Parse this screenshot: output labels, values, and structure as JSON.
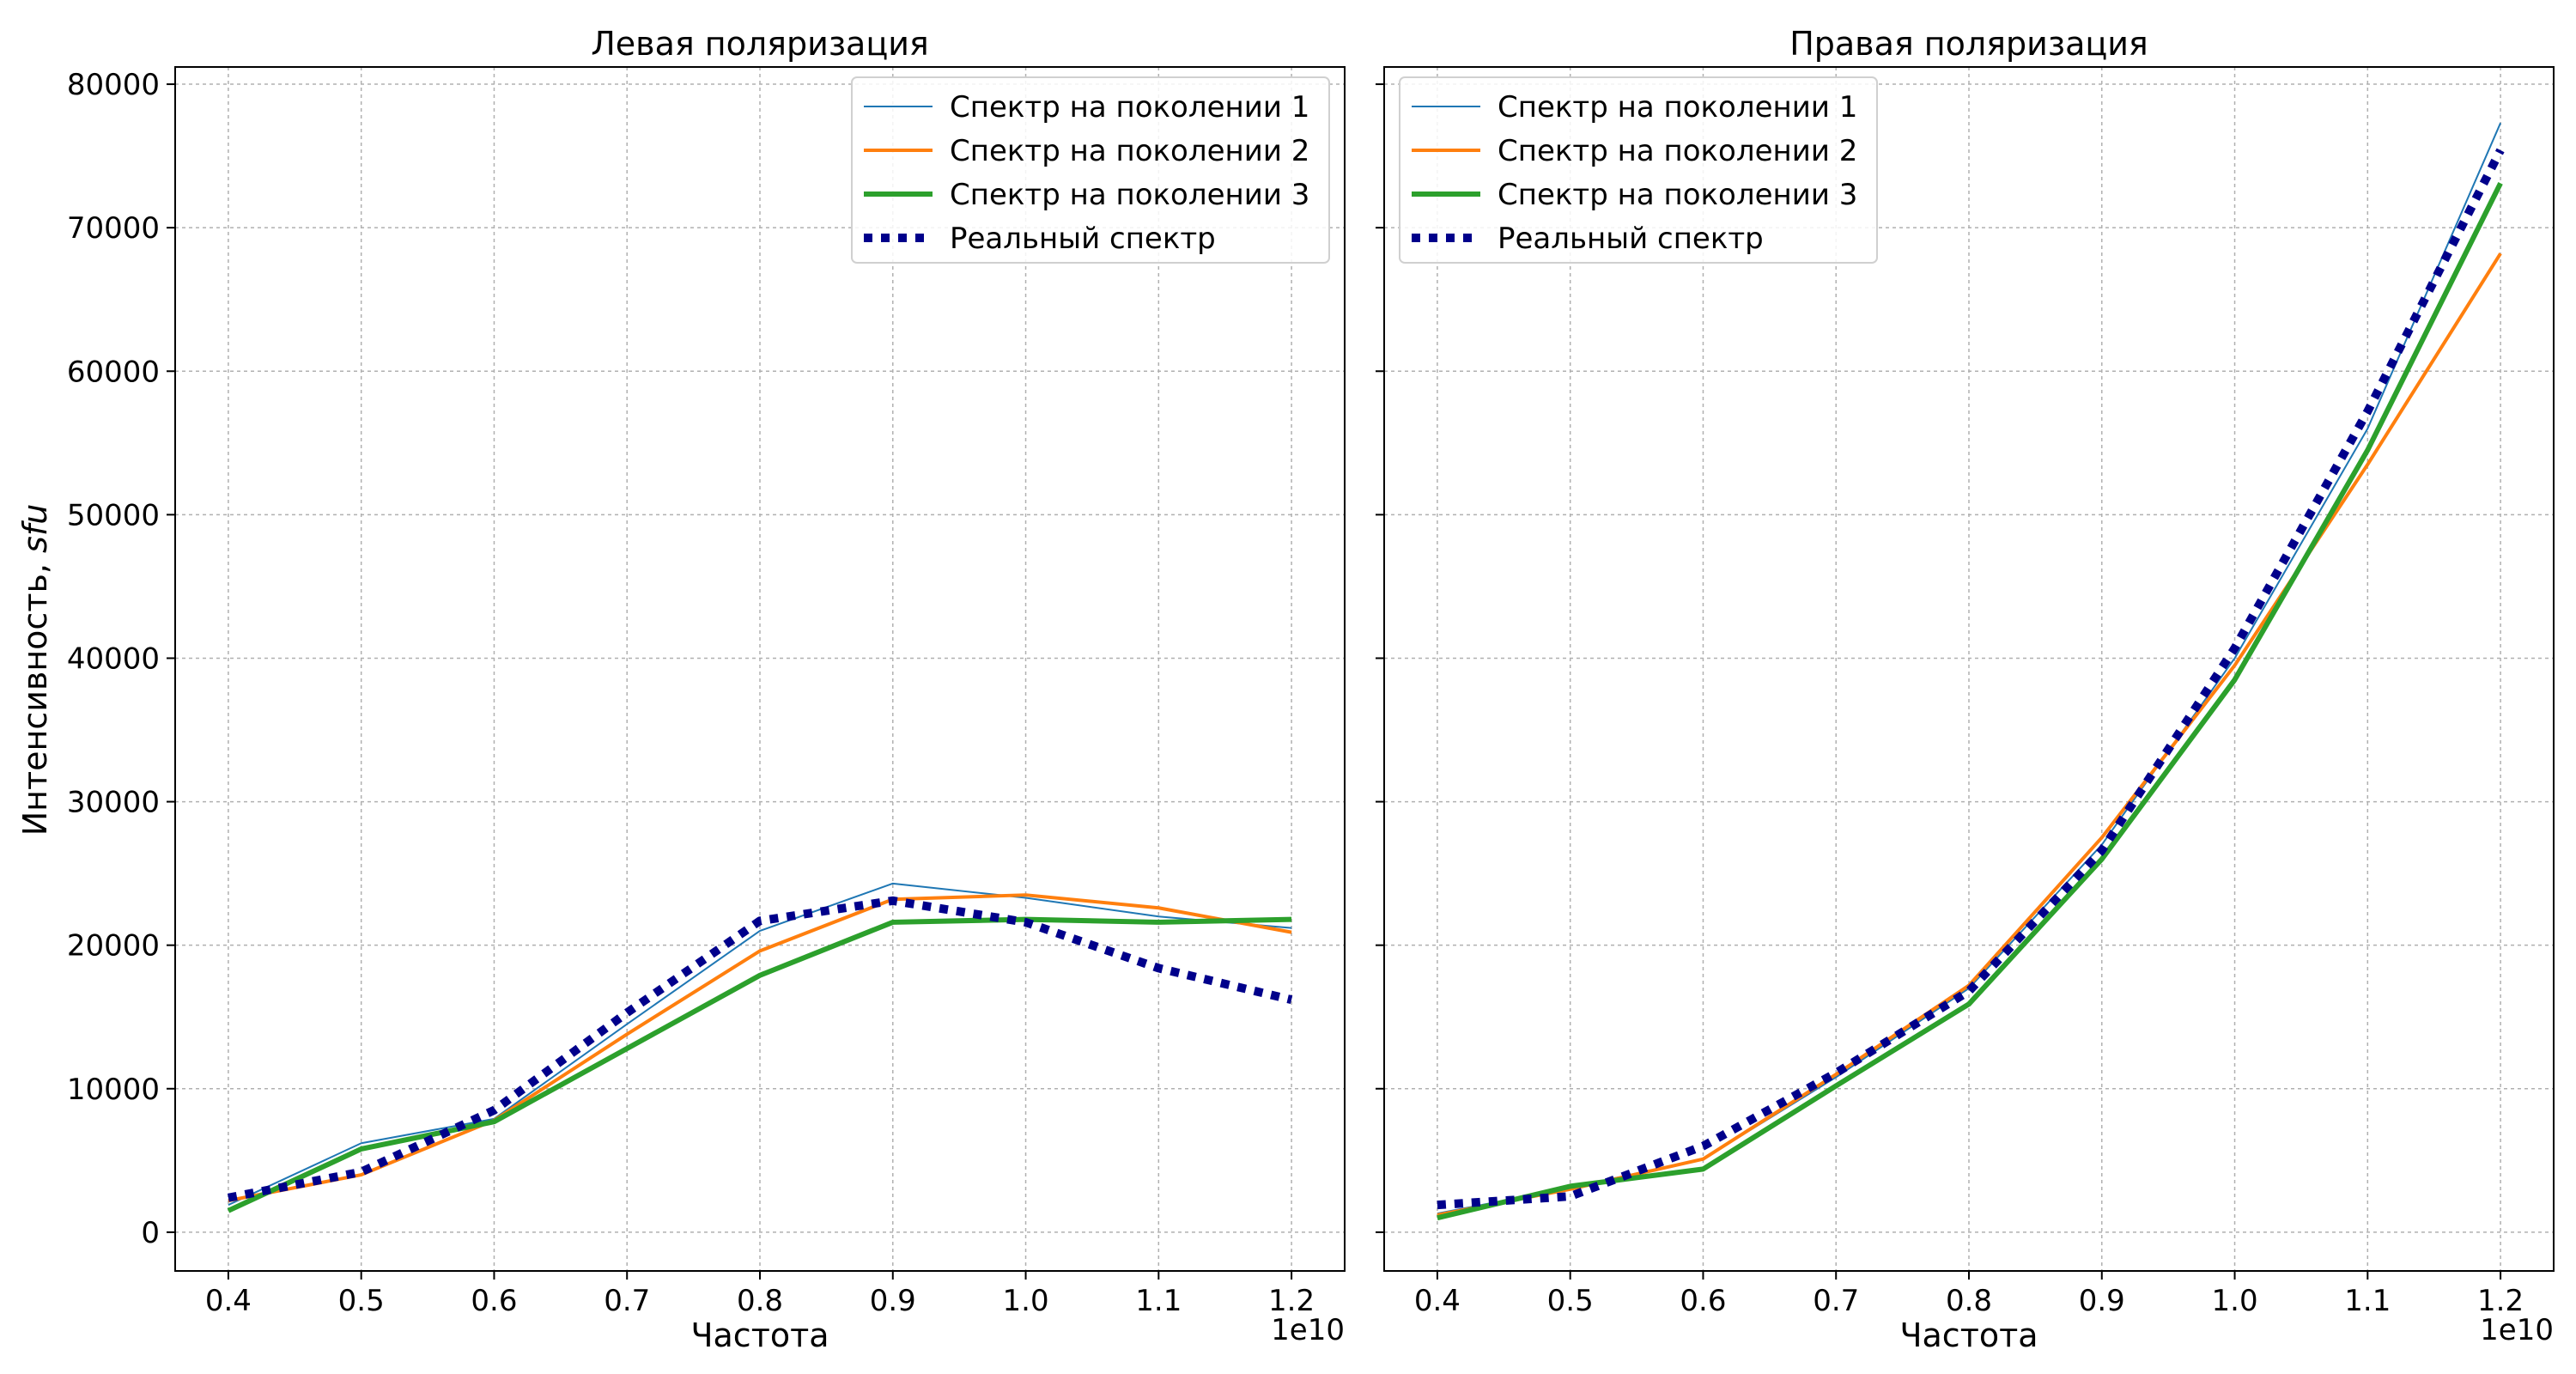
{
  "figure": {
    "ylabel_prefix": "Интенсивность, ",
    "ylabel_unit": "sfu"
  },
  "chart_data": [
    {
      "type": "line",
      "title": "Левая поляризация",
      "xlabel": "Частота",
      "ylabel": "Интенсивность, sfu",
      "x_offset_label": "1e10",
      "x": [
        0.4,
        0.5,
        0.6,
        0.7,
        0.8,
        0.9,
        1.0,
        1.1,
        1.2
      ],
      "x_scale": 10000000000.0,
      "xticks": [
        "0.4",
        "0.5",
        "0.6",
        "0.7",
        "0.8",
        "0.9",
        "1.0",
        "1.1",
        "1.2"
      ],
      "yticks": [
        "0",
        "10000",
        "20000",
        "30000",
        "40000",
        "50000",
        "60000",
        "70000",
        "80000"
      ],
      "xlim": [
        0.36,
        1.24
      ],
      "ylim": [
        -2700,
        81200
      ],
      "grid": true,
      "legend_position": "top-right",
      "series": [
        {
          "name": "Спектр на поколении 1",
          "color": "#1f77b4",
          "style": "thin-solid",
          "values": [
            1900,
            6200,
            7900,
            14500,
            21000,
            24300,
            23300,
            22000,
            21200
          ]
        },
        {
          "name": "Спектр на поколении 2",
          "color": "#ff7f0e",
          "style": "solid",
          "values": [
            2200,
            4000,
            7800,
            13800,
            19600,
            23200,
            23500,
            22600,
            20900
          ]
        },
        {
          "name": "Спектр на поколении 3",
          "color": "#2ca02c",
          "style": "thick-solid",
          "values": [
            1500,
            5800,
            7700,
            12800,
            17900,
            21600,
            21800,
            21600,
            21800
          ]
        },
        {
          "name": "Реальный спектр",
          "color": "#00008b",
          "style": "dotted",
          "values": [
            2400,
            4200,
            8500,
            15300,
            21700,
            23100,
            21600,
            18400,
            16200
          ]
        }
      ]
    },
    {
      "type": "line",
      "title": "Правая поляризация",
      "xlabel": "Частота",
      "x_offset_label": "1e10",
      "x": [
        0.4,
        0.5,
        0.6,
        0.7,
        0.8,
        0.9,
        1.0,
        1.1,
        1.2
      ],
      "x_scale": 10000000000.0,
      "xticks": [
        "0.4",
        "0.5",
        "0.6",
        "0.7",
        "0.8",
        "0.9",
        "1.0",
        "1.1",
        "1.2"
      ],
      "xlim": [
        0.36,
        1.24
      ],
      "ylim": [
        -2700,
        81200
      ],
      "grid": true,
      "legend_position": "top-left",
      "series": [
        {
          "name": "Спектр на поколении 1",
          "color": "#1f77b4",
          "style": "thin-solid",
          "values": [
            1300,
            3100,
            5100,
            10800,
            17000,
            27000,
            40000,
            56000,
            77300
          ]
        },
        {
          "name": "Спектр на поколении 2",
          "color": "#ff7f0e",
          "style": "solid",
          "values": [
            1200,
            3000,
            5100,
            11000,
            17200,
            27500,
            39500,
            53500,
            68200
          ]
        },
        {
          "name": "Спектр на поколении 3",
          "color": "#2ca02c",
          "style": "thick-solid",
          "values": [
            1000,
            3200,
            4400,
            10200,
            15900,
            26000,
            38500,
            54500,
            73100
          ]
        },
        {
          "name": "Реальный спектр",
          "color": "#00008b",
          "style": "dotted",
          "values": [
            1900,
            2500,
            6000,
            11100,
            16800,
            26600,
            40700,
            57200,
            75400
          ]
        }
      ]
    }
  ]
}
